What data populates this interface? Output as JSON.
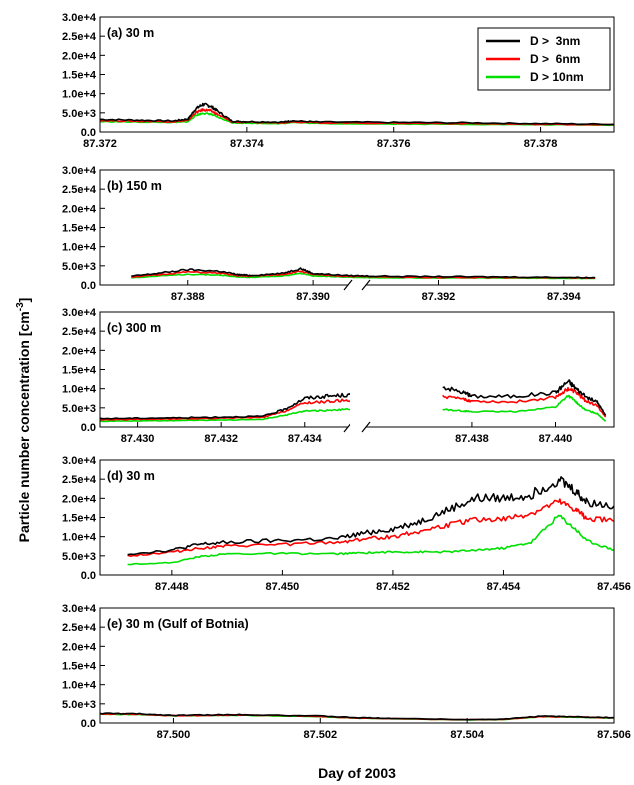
{
  "figure": {
    "ylabel": "Particle number concentration [cm",
    "ylabel_sup": "-3",
    "ylabel_close": "]",
    "xlabel": "Day of 2003"
  },
  "legend": {
    "items": [
      {
        "label": "D >  3nm",
        "color": "#000000"
      },
      {
        "label": "D >  6nm",
        "color": "#ff0000"
      },
      {
        "label": "D > 10nm",
        "color": "#00e000"
      }
    ]
  },
  "chart_data": [
    {
      "type": "line",
      "panel_label": "(a) 30 m",
      "ylim": [
        0,
        30000
      ],
      "yticks": [
        "3.0e+4",
        "2.5e+4",
        "2.0e+4",
        "1.5e+4",
        "1.0e+4",
        "5.0e+3",
        "0.0"
      ],
      "xlim": [
        87.372,
        87.379
      ],
      "xticks": [
        "87.372",
        "87.374",
        "87.376",
        "87.378"
      ],
      "series": [
        {
          "name": "D >  3nm",
          "color": "#000000",
          "x": [
            87.372,
            87.3725,
            87.373,
            87.3732,
            87.3733,
            87.3734,
            87.3735,
            87.3736,
            87.3738,
            87.374,
            87.3745,
            87.3746,
            87.375,
            87.376,
            87.377,
            87.378,
            87.379
          ],
          "y": [
            3300,
            3100,
            2900,
            3400,
            6000,
            7200,
            6800,
            5500,
            2800,
            2700,
            2600,
            2900,
            2600,
            2500,
            2400,
            2200,
            2000
          ]
        },
        {
          "name": "D >  6nm",
          "color": "#ff0000",
          "x": [
            87.372,
            87.3725,
            87.373,
            87.3732,
            87.3733,
            87.3734,
            87.3735,
            87.3736,
            87.3738,
            87.374,
            87.3745,
            87.3746,
            87.375,
            87.376,
            87.377,
            87.378,
            87.379
          ],
          "y": [
            3000,
            2800,
            2700,
            3000,
            5000,
            5800,
            5600,
            4600,
            2600,
            2500,
            2400,
            2700,
            2400,
            2300,
            2200,
            2000,
            1900
          ]
        },
        {
          "name": "D > 10nm",
          "color": "#00e000",
          "x": [
            87.372,
            87.3725,
            87.373,
            87.3732,
            87.3733,
            87.3734,
            87.3735,
            87.3736,
            87.3738,
            87.374,
            87.3745,
            87.3746,
            87.375,
            87.376,
            87.377,
            87.378,
            87.379
          ],
          "y": [
            2700,
            2600,
            2500,
            2700,
            4300,
            4900,
            4700,
            3900,
            2400,
            2300,
            2200,
            2500,
            2200,
            2100,
            2000,
            1900,
            1800
          ]
        }
      ]
    },
    {
      "type": "line",
      "panel_label": "(b) 150 m",
      "ylim": [
        0,
        30000
      ],
      "yticks": [
        "3.0e+4",
        "2.5e+4",
        "2.0e+4",
        "1.5e+4",
        "1.0e+4",
        "5.0e+3",
        "0.0"
      ],
      "xlim": [
        87.3866,
        87.3948
      ],
      "xticks": [
        "87.388",
        "87.390",
        "87.392",
        "87.394"
      ],
      "series": [
        {
          "name": "D >  3nm",
          "color": "#000000",
          "x": [
            87.3871,
            87.3875,
            87.388,
            87.3885,
            87.3888,
            87.389,
            87.3895,
            87.3898,
            87.39,
            87.3905,
            87.391,
            87.392,
            87.393,
            87.394,
            87.3945
          ],
          "y": [
            2300,
            3000,
            4000,
            3600,
            2700,
            2500,
            3000,
            4300,
            3000,
            2500,
            2300,
            2200,
            2100,
            2000,
            1900
          ]
        },
        {
          "name": "D >  6nm",
          "color": "#ff0000",
          "x": [
            87.3871,
            87.3875,
            87.388,
            87.3885,
            87.3888,
            87.389,
            87.3895,
            87.3898,
            87.39,
            87.3905,
            87.391,
            87.392,
            87.393,
            87.394,
            87.3945
          ],
          "y": [
            2100,
            2600,
            3400,
            3100,
            2400,
            2300,
            2700,
            3600,
            2700,
            2300,
            2100,
            2000,
            1950,
            1900,
            1800
          ]
        },
        {
          "name": "D > 10nm",
          "color": "#00e000",
          "x": [
            87.3871,
            87.3875,
            87.388,
            87.3885,
            87.3888,
            87.389,
            87.3895,
            87.3898,
            87.39,
            87.3905,
            87.391,
            87.392,
            87.393,
            87.394,
            87.3945
          ],
          "y": [
            1900,
            2300,
            2800,
            2600,
            2100,
            2000,
            2300,
            3000,
            2400,
            2100,
            1900,
            1850,
            1800,
            1750,
            1700
          ]
        }
      ]
    },
    {
      "type": "line",
      "panel_label": "(c) 300 m",
      "ylim": [
        0,
        30000
      ],
      "yticks": [
        "3.0e+4",
        "2.5e+4",
        "2.0e+4",
        "1.5e+4",
        "1.0e+4",
        "5.0e+3",
        "0.0"
      ],
      "xlim": [
        87.4291,
        87.4414
      ],
      "xticks": [
        "87.430",
        "87.432",
        "87.434",
        "87.438",
        "87.440"
      ],
      "axis_break": true,
      "series": [
        {
          "name": "D >  3nm",
          "color": "#000000",
          "x": [
            87.4291,
            87.43,
            87.431,
            87.432,
            87.433,
            87.4335,
            87.434,
            87.4345,
            87.435,
            87.4353,
            87.4373,
            87.4378,
            87.438,
            87.439,
            87.44,
            87.4403,
            87.4405,
            87.4407,
            87.441,
            87.4412
          ],
          "y": [
            2200,
            2300,
            2400,
            2600,
            2800,
            4500,
            7500,
            8000,
            8300,
            8200,
            10500,
            9000,
            8000,
            8000,
            9000,
            12000,
            10000,
            8000,
            6500,
            3000
          ]
        },
        {
          "name": "D >  6nm",
          "color": "#ff0000",
          "x": [
            87.4291,
            87.43,
            87.431,
            87.432,
            87.433,
            87.4335,
            87.434,
            87.4345,
            87.435,
            87.4353,
            87.4373,
            87.4378,
            87.438,
            87.439,
            87.44,
            87.4403,
            87.4405,
            87.4407,
            87.441,
            87.4412
          ],
          "y": [
            1900,
            2000,
            2100,
            2300,
            2500,
            4000,
            6300,
            6600,
            7000,
            6900,
            8000,
            7200,
            6800,
            6500,
            7800,
            10000,
            9000,
            7000,
            5500,
            2600
          ]
        },
        {
          "name": "D > 10nm",
          "color": "#00e000",
          "x": [
            87.4291,
            87.43,
            87.431,
            87.432,
            87.433,
            87.4335,
            87.434,
            87.4345,
            87.435,
            87.4353,
            87.4373,
            87.4378,
            87.438,
            87.439,
            87.44,
            87.4403,
            87.4405,
            87.4407,
            87.441,
            87.4412
          ],
          "y": [
            1500,
            1600,
            1700,
            1800,
            2000,
            3000,
            4200,
            4300,
            4600,
            4500,
            4600,
            4200,
            4000,
            4000,
            5200,
            8200,
            6500,
            4500,
            3500,
            1500
          ]
        }
      ]
    },
    {
      "type": "line",
      "panel_label": "(d) 30 m",
      "ylim": [
        0,
        30000
      ],
      "yticks": [
        "3.0e+4",
        "2.5e+4",
        "2.0e+4",
        "1.5e+4",
        "1.0e+4",
        "5.0e+3",
        "0.0"
      ],
      "xlim": [
        87.4467,
        87.456
      ],
      "xticks": [
        "87.448",
        "87.450",
        "87.452",
        "87.454",
        "87.456"
      ],
      "series": [
        {
          "name": "D >  3nm",
          "color": "#000000",
          "x": [
            87.4472,
            87.448,
            87.4485,
            87.449,
            87.45,
            87.451,
            87.4515,
            87.452,
            87.4525,
            87.453,
            87.4535,
            87.454,
            87.4545,
            87.455,
            87.4553,
            87.4555,
            87.456
          ],
          "y": [
            5500,
            6500,
            8000,
            8500,
            9000,
            9500,
            11000,
            12000,
            14000,
            17000,
            20000,
            20000,
            21000,
            25000,
            22000,
            19000,
            18000
          ]
        },
        {
          "name": "D >  6nm",
          "color": "#ff0000",
          "x": [
            87.4472,
            87.448,
            87.4485,
            87.449,
            87.45,
            87.451,
            87.4515,
            87.452,
            87.4525,
            87.453,
            87.4535,
            87.454,
            87.4545,
            87.455,
            87.4553,
            87.4555,
            87.456
          ],
          "y": [
            5000,
            6000,
            7000,
            7500,
            8000,
            8500,
            9500,
            10000,
            11500,
            13000,
            14500,
            14500,
            16000,
            19000,
            17000,
            15000,
            14000
          ]
        },
        {
          "name": "D > 10nm",
          "color": "#00e000",
          "x": [
            87.4472,
            87.448,
            87.4485,
            87.449,
            87.45,
            87.451,
            87.4515,
            87.452,
            87.4525,
            87.453,
            87.4535,
            87.454,
            87.4545,
            87.455,
            87.4553,
            87.4555,
            87.456
          ],
          "y": [
            2800,
            3200,
            4800,
            5500,
            5600,
            5500,
            5800,
            6000,
            6000,
            6000,
            6500,
            7000,
            8500,
            15500,
            12000,
            9000,
            6500
          ]
        }
      ]
    },
    {
      "type": "line",
      "panel_label": "(e) 30 m (Gulf of Botnia)",
      "ylim": [
        0,
        30000
      ],
      "yticks": [
        "3.0e+4",
        "2.5e+4",
        "2.0e+4",
        "1.5e+4",
        "1.0e+4",
        "5.0e+3",
        "0.0"
      ],
      "xlim": [
        87.499,
        87.506
      ],
      "xticks": [
        "87.500",
        "87.502",
        "87.504",
        "87.506"
      ],
      "series": [
        {
          "name": "D >  3nm",
          "color": "#000000",
          "x": [
            87.499,
            87.4995,
            87.5,
            87.5005,
            87.501,
            87.502,
            87.5025,
            87.503,
            87.504,
            87.5045,
            87.505,
            87.5055,
            87.506
          ],
          "y": [
            2500,
            2400,
            2000,
            2100,
            2200,
            1800,
            1400,
            1200,
            900,
            1000,
            1800,
            1600,
            1400
          ]
        },
        {
          "name": "D >  6nm",
          "color": "#ff0000",
          "x": [
            87.499,
            87.4995,
            87.5,
            87.5005,
            87.501,
            87.502,
            87.5025,
            87.503,
            87.504,
            87.5045,
            87.505,
            87.5055,
            87.506
          ],
          "y": [
            2400,
            2300,
            1900,
            2000,
            2100,
            1700,
            1300,
            1150,
            850,
            950,
            1700,
            1550,
            1350
          ]
        },
        {
          "name": "D > 10nm",
          "color": "#00e000",
          "x": [
            87.499,
            87.4995,
            87.5,
            87.5005,
            87.501,
            87.502,
            87.5025,
            87.503,
            87.504,
            87.5045,
            87.505,
            87.5055,
            87.506
          ],
          "y": [
            2300,
            2200,
            1850,
            1950,
            2000,
            1650,
            1250,
            1100,
            800,
            900,
            1650,
            1500,
            1300
          ]
        }
      ]
    }
  ]
}
